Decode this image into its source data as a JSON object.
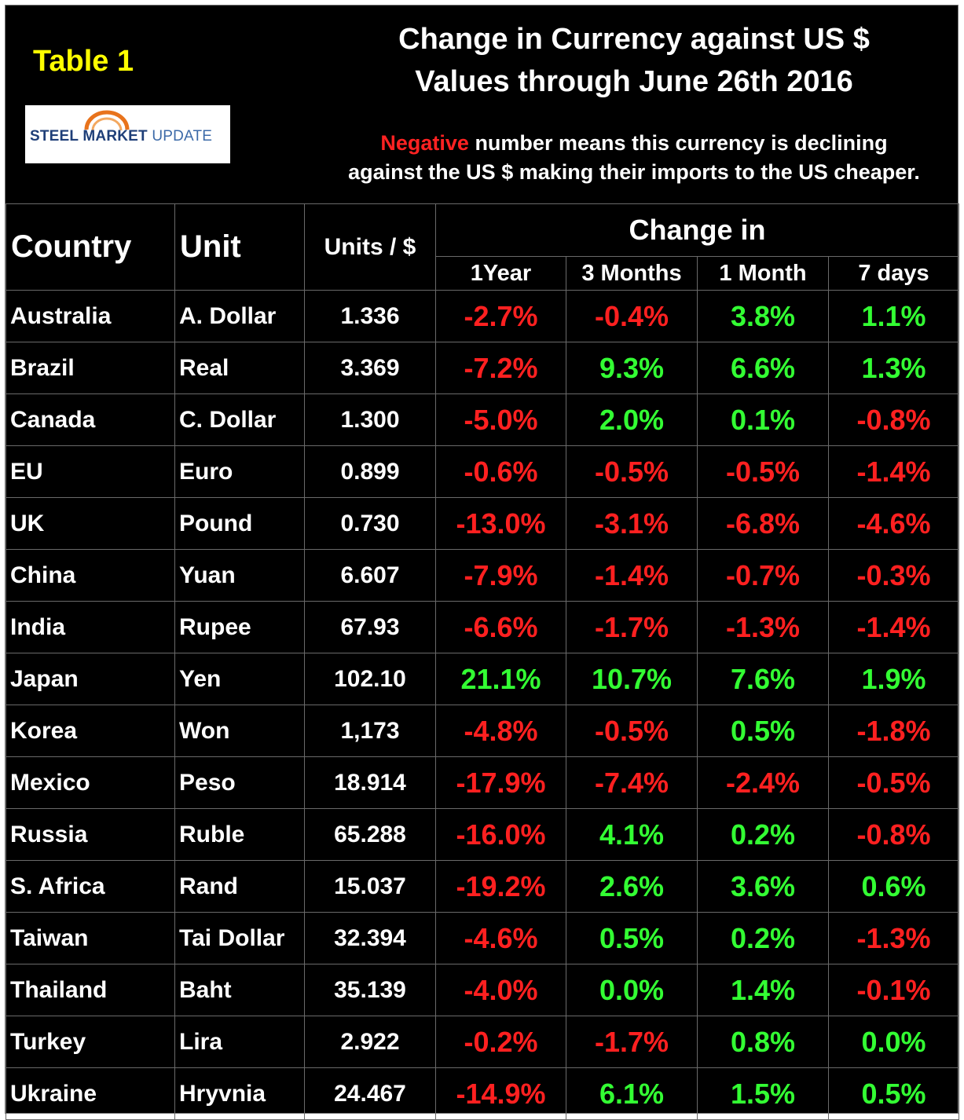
{
  "header": {
    "table_label": "Table 1",
    "title_line1": "Change in Currency against US $",
    "title_line2": "Values through June 26th 2016",
    "note_highlight": "Negative",
    "note_line1_rest": " number means this currency is declining",
    "note_line2": "against the US $ making their imports to the US cheaper.",
    "logo_bold": "STEEL MARKET",
    "logo_light": " UPDATE"
  },
  "colors": {
    "background": "#000000",
    "negative": "#ff2020",
    "positive": "#33ff33",
    "table_label": "#ffff00"
  },
  "chart_data": {
    "type": "table",
    "columns": {
      "country": "Country",
      "unit": "Unit",
      "rate": "Units / $",
      "change_group": "Change in",
      "periods": [
        "1Year",
        "3 Months",
        "1 Month",
        "7 days"
      ]
    },
    "rows": [
      {
        "country": "Australia",
        "unit": "A. Dollar",
        "rate": "1.336",
        "changes": [
          "-2.7%",
          "-0.4%",
          "3.8%",
          "1.1%"
        ]
      },
      {
        "country": "Brazil",
        "unit": "Real",
        "rate": "3.369",
        "changes": [
          "-7.2%",
          "9.3%",
          "6.6%",
          "1.3%"
        ]
      },
      {
        "country": "Canada",
        "unit": "C. Dollar",
        "rate": "1.300",
        "changes": [
          "-5.0%",
          "2.0%",
          "0.1%",
          "-0.8%"
        ]
      },
      {
        "country": "EU",
        "unit": "Euro",
        "rate": "0.899",
        "changes": [
          "-0.6%",
          "-0.5%",
          "-0.5%",
          "-1.4%"
        ]
      },
      {
        "country": "UK",
        "unit": "Pound",
        "rate": "0.730",
        "changes": [
          "-13.0%",
          "-3.1%",
          "-6.8%",
          "-4.6%"
        ]
      },
      {
        "country": "China",
        "unit": "Yuan",
        "rate": "6.607",
        "changes": [
          "-7.9%",
          "-1.4%",
          "-0.7%",
          "-0.3%"
        ]
      },
      {
        "country": "India",
        "unit": "Rupee",
        "rate": "67.93",
        "changes": [
          "-6.6%",
          "-1.7%",
          "-1.3%",
          "-1.4%"
        ]
      },
      {
        "country": "Japan",
        "unit": "Yen",
        "rate": "102.10",
        "changes": [
          "21.1%",
          "10.7%",
          "7.6%",
          "1.9%"
        ]
      },
      {
        "country": "Korea",
        "unit": "Won",
        "rate": "1,173",
        "changes": [
          "-4.8%",
          "-0.5%",
          "0.5%",
          "-1.8%"
        ]
      },
      {
        "country": "Mexico",
        "unit": "Peso",
        "rate": "18.914",
        "changes": [
          "-17.9%",
          "-7.4%",
          "-2.4%",
          "-0.5%"
        ]
      },
      {
        "country": "Russia",
        "unit": "Ruble",
        "rate": "65.288",
        "changes": [
          "-16.0%",
          "4.1%",
          "0.2%",
          "-0.8%"
        ]
      },
      {
        "country": "S. Africa",
        "unit": "Rand",
        "rate": "15.037",
        "changes": [
          "-19.2%",
          "2.6%",
          "3.6%",
          "0.6%"
        ]
      },
      {
        "country": "Taiwan",
        "unit": "Tai Dollar",
        "rate": "32.394",
        "changes": [
          "-4.6%",
          "0.5%",
          "0.2%",
          "-1.3%"
        ]
      },
      {
        "country": "Thailand",
        "unit": "Baht",
        "rate": "35.139",
        "changes": [
          "-4.0%",
          "0.0%",
          "1.4%",
          "-0.1%"
        ]
      },
      {
        "country": "Turkey",
        "unit": "Lira",
        "rate": "2.922",
        "changes": [
          "-0.2%",
          "-1.7%",
          "0.8%",
          "0.0%"
        ]
      },
      {
        "country": "Ukraine",
        "unit": "Hryvnia",
        "rate": "24.467",
        "changes": [
          "-14.9%",
          "6.1%",
          "1.5%",
          "0.5%"
        ]
      }
    ]
  }
}
